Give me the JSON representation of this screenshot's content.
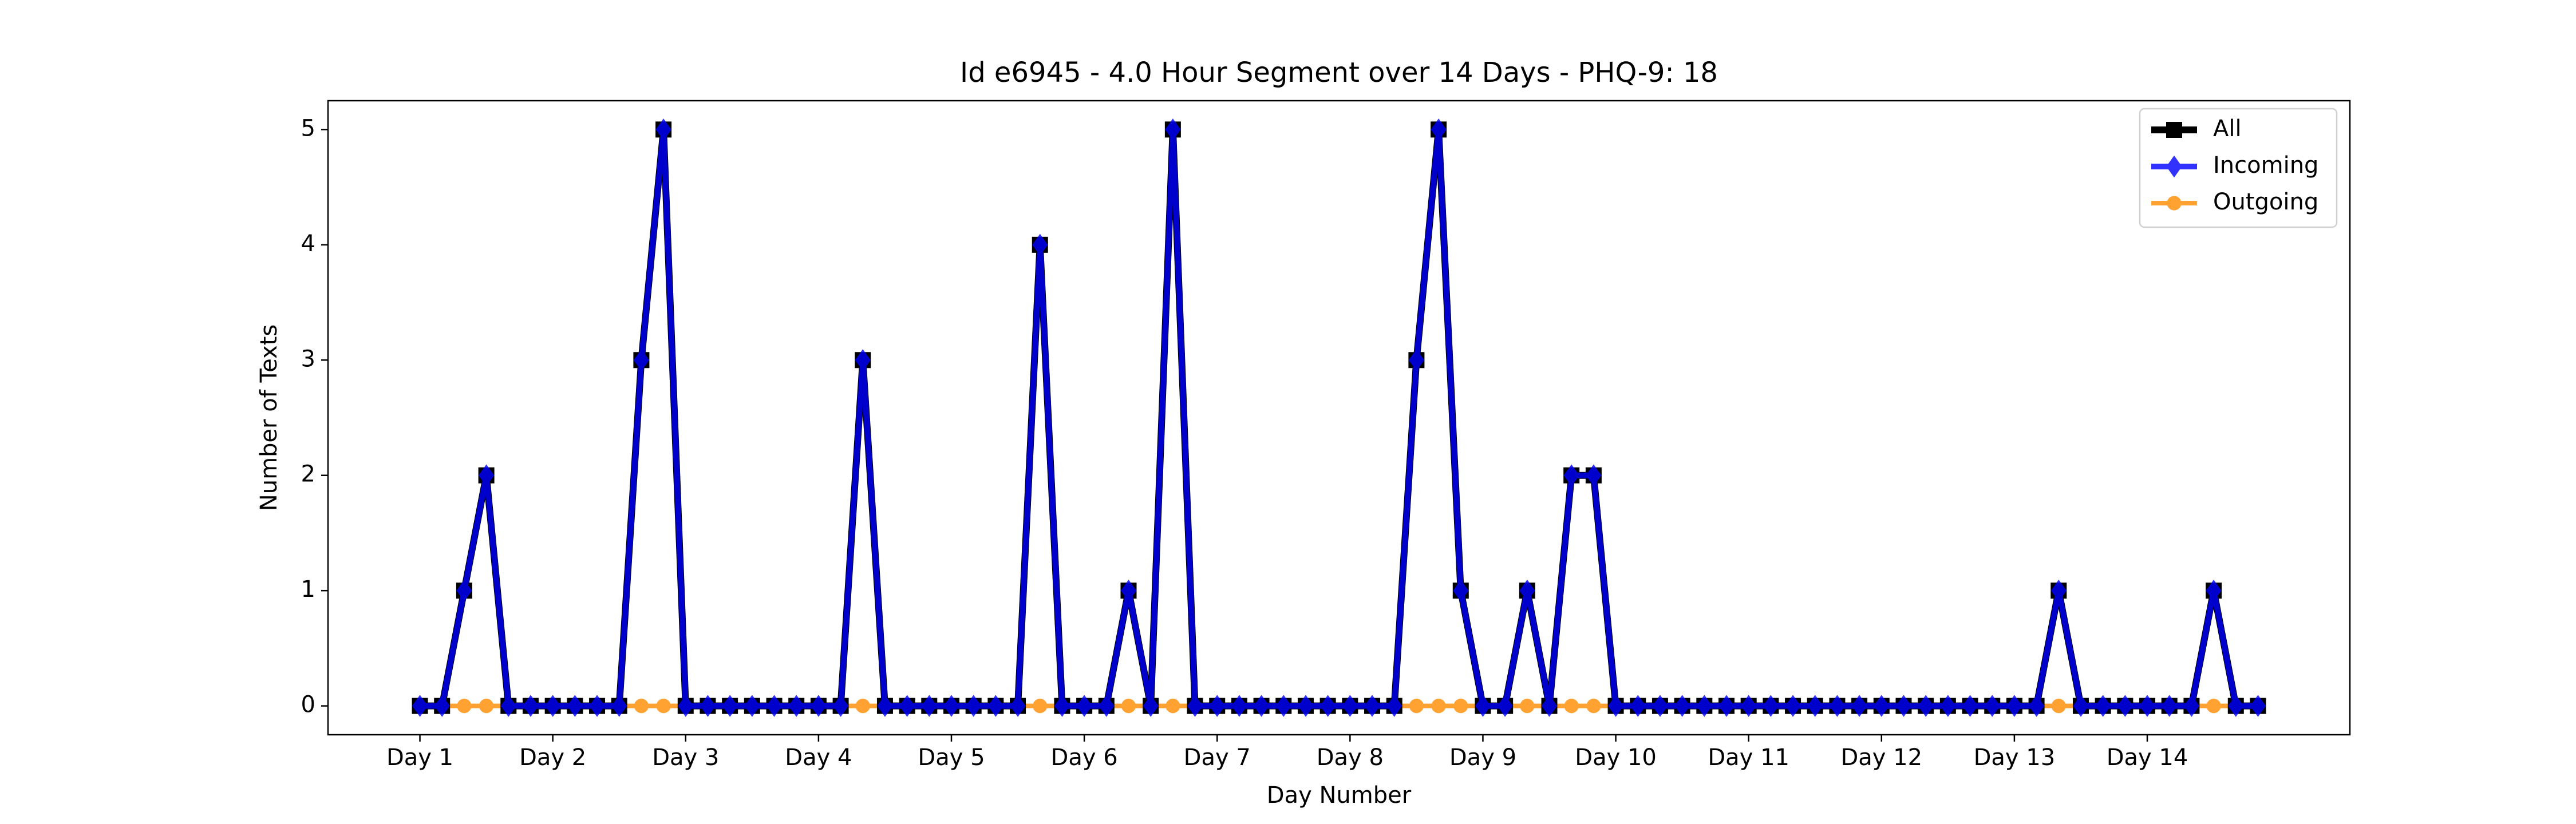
{
  "chart_data": {
    "type": "line",
    "title": "Id e6945 - 4.0 Hour Segment over 14 Days - PHQ-9: 18",
    "xlabel": "Day Number",
    "ylabel": "Number of Texts",
    "x": [
      0,
      1,
      2,
      3,
      4,
      5,
      6,
      7,
      8,
      9,
      10,
      11,
      12,
      13,
      14,
      15,
      16,
      17,
      18,
      19,
      20,
      21,
      22,
      23,
      24,
      25,
      26,
      27,
      28,
      29,
      30,
      31,
      32,
      33,
      34,
      35,
      36,
      37,
      38,
      39,
      40,
      41,
      42,
      43,
      44,
      45,
      46,
      47,
      48,
      49,
      50,
      51,
      52,
      53,
      54,
      55,
      56,
      57,
      58,
      59,
      60,
      61,
      62,
      63,
      64,
      65,
      66,
      67,
      68,
      69,
      70,
      71,
      72,
      73,
      74,
      75,
      76,
      77,
      78,
      79,
      80,
      81,
      82,
      83
    ],
    "series": [
      {
        "name": "All",
        "color": "#000000",
        "marker": "square",
        "values": [
          0,
          0,
          1,
          2,
          0,
          0,
          0,
          0,
          0,
          0,
          3,
          5,
          0,
          0,
          0,
          0,
          0,
          0,
          0,
          0,
          3,
          0,
          0,
          0,
          0,
          0,
          0,
          0,
          4,
          0,
          0,
          0,
          1,
          0,
          5,
          0,
          0,
          0,
          0,
          0,
          0,
          0,
          0,
          0,
          0,
          3,
          5,
          1,
          0,
          0,
          1,
          0,
          2,
          2,
          0,
          0,
          0,
          0,
          0,
          0,
          0,
          0,
          0,
          0,
          0,
          0,
          0,
          0,
          0,
          0,
          0,
          0,
          0,
          0,
          1,
          0,
          0,
          0,
          0,
          0,
          0,
          1,
          0,
          0
        ]
      },
      {
        "name": "Incoming",
        "color": "#0000ff",
        "marker": "diamond",
        "values": [
          0,
          0,
          1,
          2,
          0,
          0,
          0,
          0,
          0,
          0,
          3,
          5,
          0,
          0,
          0,
          0,
          0,
          0,
          0,
          0,
          3,
          0,
          0,
          0,
          0,
          0,
          0,
          0,
          4,
          0,
          0,
          0,
          1,
          0,
          5,
          0,
          0,
          0,
          0,
          0,
          0,
          0,
          0,
          0,
          0,
          3,
          5,
          1,
          0,
          0,
          1,
          0,
          2,
          2,
          0,
          0,
          0,
          0,
          0,
          0,
          0,
          0,
          0,
          0,
          0,
          0,
          0,
          0,
          0,
          0,
          0,
          0,
          0,
          0,
          1,
          0,
          0,
          0,
          0,
          0,
          0,
          1,
          0,
          0
        ]
      },
      {
        "name": "Outgoing",
        "color": "#ff8c00",
        "marker": "circle",
        "values": [
          0,
          0,
          0,
          0,
          0,
          0,
          0,
          0,
          0,
          0,
          0,
          0,
          0,
          0,
          0,
          0,
          0,
          0,
          0,
          0,
          0,
          0,
          0,
          0,
          0,
          0,
          0,
          0,
          0,
          0,
          0,
          0,
          0,
          0,
          0,
          0,
          0,
          0,
          0,
          0,
          0,
          0,
          0,
          0,
          0,
          0,
          0,
          0,
          0,
          0,
          0,
          0,
          0,
          0,
          0,
          0,
          0,
          0,
          0,
          0,
          0,
          0,
          0,
          0,
          0,
          0,
          0,
          0,
          0,
          0,
          0,
          0,
          0,
          0,
          0,
          0,
          0,
          0,
          0,
          0,
          0,
          0,
          0,
          0
        ]
      }
    ],
    "xlim": [
      -4.15,
      87.15
    ],
    "ylim": [
      -0.25,
      5.25
    ],
    "xticks": [
      {
        "value": 0,
        "label": "Day 1"
      },
      {
        "value": 6,
        "label": "Day 2"
      },
      {
        "value": 12,
        "label": "Day 3"
      },
      {
        "value": 18,
        "label": "Day 4"
      },
      {
        "value": 24,
        "label": "Day 5"
      },
      {
        "value": 30,
        "label": "Day 6"
      },
      {
        "value": 36,
        "label": "Day 7"
      },
      {
        "value": 42,
        "label": "Day 8"
      },
      {
        "value": 48,
        "label": "Day 9"
      },
      {
        "value": 54,
        "label": "Day 10"
      },
      {
        "value": 60,
        "label": "Day 11"
      },
      {
        "value": 66,
        "label": "Day 12"
      },
      {
        "value": 72,
        "label": "Day 13"
      },
      {
        "value": 78,
        "label": "Day 14"
      }
    ],
    "yticks": [
      0,
      1,
      2,
      3,
      4,
      5
    ],
    "legend": "upper right"
  }
}
